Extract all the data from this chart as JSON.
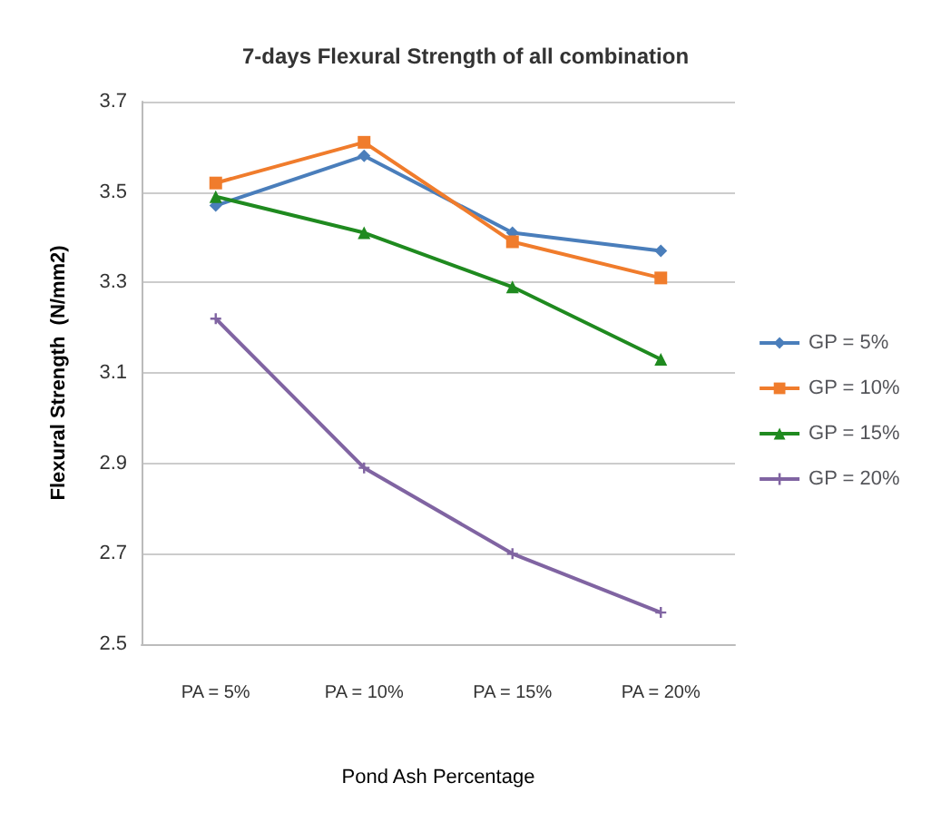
{
  "chart_data": {
    "type": "line",
    "title": "7-days Flexural Strength of all combination",
    "xlabel": "Pond Ash Percentage",
    "ylabel": "Flexural Strength  (N/mm2)",
    "categories": [
      "PA = 5%",
      "PA = 10%",
      "PA = 15%",
      "PA = 20%"
    ],
    "series": [
      {
        "name": "GP = 5%",
        "color": "#4a7ebb",
        "marker": "diamond",
        "values": [
          3.47,
          3.58,
          3.41,
          3.37
        ]
      },
      {
        "name": "GP = 10%",
        "color": "#f07c2c",
        "marker": "square",
        "values": [
          3.52,
          3.61,
          3.39,
          3.31
        ]
      },
      {
        "name": "GP = 15%",
        "color": "#1f8a1f",
        "marker": "triangle",
        "values": [
          3.49,
          3.41,
          3.29,
          3.13
        ]
      },
      {
        "name": "GP = 20%",
        "color": "#8064a2",
        "marker": "cross",
        "values": [
          3.22,
          2.89,
          2.7,
          2.57
        ]
      }
    ],
    "ylim": [
      2.5,
      3.7
    ],
    "yticks": [
      2.5,
      2.7,
      2.9,
      3.1,
      3.3,
      3.5,
      3.7
    ],
    "grid": "y",
    "legend": "right",
    "line_style": "solid"
  }
}
